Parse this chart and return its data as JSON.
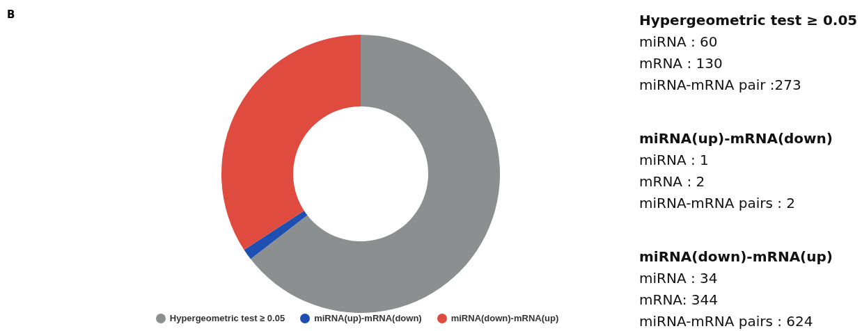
{
  "chart_data": [
    {
      "type": "donut",
      "categories": [
        "Hypergeometric test ≥ 0.05",
        "miRNA(up)-mRNA(down)",
        "miRNA(down)-mRNA(up)"
      ],
      "values": [
        64.5,
        1.3,
        34.2
      ],
      "colors": [
        "#8c8f8f",
        "#1f4fb0",
        "#e04b3f"
      ],
      "legend": "bottom",
      "annotations": [
        "B"
      ]
    },
    {
      "type": "other",
      "title": "Hypergeometric test ≥ 0.05",
      "annotations": [
        "miRNA : 60",
        "mRNA : 130",
        "miRNA-mRNA pair :273"
      ]
    },
    {
      "type": "other",
      "title": "miRNA(up)-mRNA(down)",
      "annotations": [
        "miRNA : 1",
        "mRNA : 2",
        "miRNA-mRNA pairs : 2"
      ]
    },
    {
      "type": "other",
      "title": "miRNA(down)-mRNA(up)",
      "annotations": [
        "miRNA : 34",
        "mRNA: 344",
        "miRNA-mRNA pairs : 624"
      ]
    }
  ]
}
